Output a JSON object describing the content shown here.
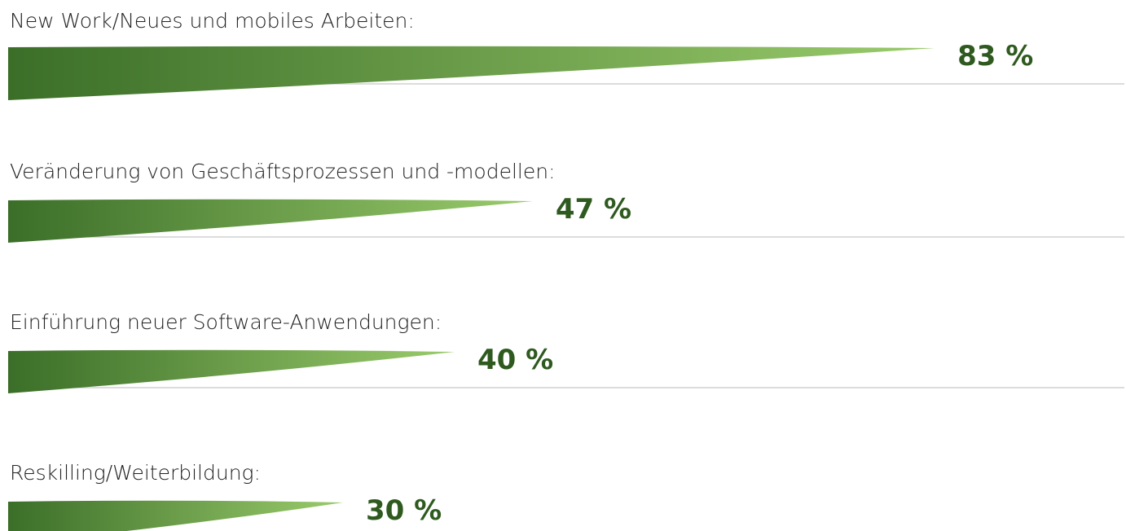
{
  "chart_data": {
    "type": "bar",
    "orientation": "horizontal",
    "categories": [
      "New Work/Neues und mobiles Arbeiten:",
      "Veränderung von Geschäftsprozessen und -modellen:",
      "Einführung neuer Software-Anwendungen:",
      "Reskilling/Weiterbildung:"
    ],
    "values": [
      83,
      47,
      40,
      30
    ],
    "value_labels": [
      "83 %",
      "47 %",
      "40 %",
      "30 %"
    ],
    "xlim": [
      0,
      100
    ],
    "color": [
      "#3b6e28",
      "#9acb6c"
    ]
  }
}
